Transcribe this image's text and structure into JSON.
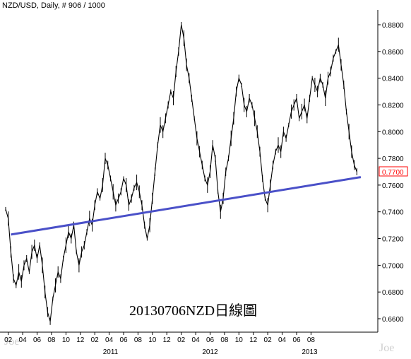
{
  "header": {
    "symbol": "NZD/USD",
    "period": ", Daily, # 906 / 1000"
  },
  "annotation": "20130706NZD日線圖",
  "watermark": {
    "left": "Joe",
    "right": "Joe"
  },
  "colors": {
    "price": "#000000",
    "trendline": "#4a50c8",
    "current_label": "#ff0000",
    "axis": "#000000"
  },
  "chart_data": {
    "type": "line",
    "title": "",
    "series": [
      {
        "values": [
          [
            0,
            0.742
          ],
          [
            2,
            0.735
          ],
          [
            4,
            0.71
          ],
          [
            6,
            0.69
          ],
          [
            8,
            0.685
          ],
          [
            10,
            0.695
          ],
          [
            12,
            0.688
          ],
          [
            14,
            0.7
          ],
          [
            16,
            0.705
          ],
          [
            18,
            0.695
          ],
          [
            20,
            0.71
          ],
          [
            22,
            0.715
          ],
          [
            24,
            0.705
          ],
          [
            26,
            0.715
          ],
          [
            28,
            0.7
          ],
          [
            30,
            0.68
          ],
          [
            32,
            0.665
          ],
          [
            34,
            0.658
          ],
          [
            36,
            0.675
          ],
          [
            38,
            0.685
          ],
          [
            40,
            0.695
          ],
          [
            42,
            0.69
          ],
          [
            44,
            0.705
          ],
          [
            46,
            0.715
          ],
          [
            48,
            0.725
          ],
          [
            50,
            0.72
          ],
          [
            52,
            0.73
          ],
          [
            54,
            0.71
          ],
          [
            56,
            0.7
          ],
          [
            58,
            0.71
          ],
          [
            60,
            0.715
          ],
          [
            62,
            0.725
          ],
          [
            64,
            0.735
          ],
          [
            66,
            0.73
          ],
          [
            68,
            0.745
          ],
          [
            70,
            0.755
          ],
          [
            72,
            0.75
          ],
          [
            74,
            0.76
          ],
          [
            76,
            0.78
          ],
          [
            78,
            0.775
          ],
          [
            80,
            0.765
          ],
          [
            82,
            0.755
          ],
          [
            84,
            0.745
          ],
          [
            86,
            0.75
          ],
          [
            88,
            0.755
          ],
          [
            90,
            0.765
          ],
          [
            92,
            0.76
          ],
          [
            94,
            0.745
          ],
          [
            96,
            0.75
          ],
          [
            98,
            0.758
          ],
          [
            100,
            0.762
          ],
          [
            102,
            0.755
          ],
          [
            104,
            0.745
          ],
          [
            106,
            0.73
          ],
          [
            108,
            0.72
          ],
          [
            110,
            0.73
          ],
          [
            112,
            0.75
          ],
          [
            114,
            0.77
          ],
          [
            116,
            0.79
          ],
          [
            118,
            0.805
          ],
          [
            120,
            0.8
          ],
          [
            122,
            0.81
          ],
          [
            124,
            0.82
          ],
          [
            126,
            0.83
          ],
          [
            128,
            0.825
          ],
          [
            130,
            0.845
          ],
          [
            132,
            0.86
          ],
          [
            134,
            0.88
          ],
          [
            136,
            0.87
          ],
          [
            138,
            0.85
          ],
          [
            140,
            0.84
          ],
          [
            142,
            0.825
          ],
          [
            144,
            0.81
          ],
          [
            146,
            0.795
          ],
          [
            148,
            0.785
          ],
          [
            150,
            0.775
          ],
          [
            152,
            0.765
          ],
          [
            154,
            0.76
          ],
          [
            156,
            0.77
          ],
          [
            158,
            0.79
          ],
          [
            160,
            0.78
          ],
          [
            162,
            0.755
          ],
          [
            164,
            0.74
          ],
          [
            166,
            0.75
          ],
          [
            168,
            0.77
          ],
          [
            170,
            0.78
          ],
          [
            172,
            0.795
          ],
          [
            174,
            0.81
          ],
          [
            176,
            0.83
          ],
          [
            178,
            0.84
          ],
          [
            180,
            0.835
          ],
          [
            182,
            0.82
          ],
          [
            184,
            0.815
          ],
          [
            186,
            0.825
          ],
          [
            188,
            0.82
          ],
          [
            190,
            0.81
          ],
          [
            192,
            0.8
          ],
          [
            194,
            0.785
          ],
          [
            196,
            0.765
          ],
          [
            198,
            0.75
          ],
          [
            200,
            0.745
          ],
          [
            202,
            0.76
          ],
          [
            204,
            0.775
          ],
          [
            206,
            0.785
          ],
          [
            208,
            0.79
          ],
          [
            210,
            0.785
          ],
          [
            212,
            0.8
          ],
          [
            214,
            0.795
          ],
          [
            216,
            0.805
          ],
          [
            218,
            0.815
          ],
          [
            220,
            0.82
          ],
          [
            222,
            0.825
          ],
          [
            224,
            0.81
          ],
          [
            226,
            0.815
          ],
          [
            228,
            0.82
          ],
          [
            230,
            0.81
          ],
          [
            232,
            0.825
          ],
          [
            234,
            0.84
          ],
          [
            236,
            0.835
          ],
          [
            238,
            0.83
          ],
          [
            240,
            0.84
          ],
          [
            242,
            0.835
          ],
          [
            244,
            0.825
          ],
          [
            246,
            0.84
          ],
          [
            248,
            0.845
          ],
          [
            250,
            0.855
          ],
          [
            252,
            0.86
          ],
          [
            254,
            0.865
          ],
          [
            256,
            0.85
          ],
          [
            258,
            0.835
          ],
          [
            260,
            0.815
          ],
          [
            262,
            0.8
          ],
          [
            264,
            0.785
          ],
          [
            266,
            0.775
          ],
          [
            268,
            0.77
          ]
        ]
      }
    ],
    "trendline": [
      [
        4,
        0.723
      ],
      [
        271,
        0.766
      ]
    ],
    "last_value": "0.7700",
    "xaxis": {
      "range": [
        0,
        284
      ],
      "ticks": [
        {
          "x": 2,
          "label": "02"
        },
        {
          "x": 13,
          "label": "04"
        },
        {
          "x": 24,
          "label": "06"
        },
        {
          "x": 35,
          "label": "08"
        },
        {
          "x": 46,
          "label": "10"
        },
        {
          "x": 57,
          "label": "12"
        },
        {
          "x": 68,
          "label": "02"
        },
        {
          "x": 79,
          "label": "04"
        },
        {
          "x": 90,
          "label": "06"
        },
        {
          "x": 101,
          "label": "08"
        },
        {
          "x": 112,
          "label": "10"
        },
        {
          "x": 123,
          "label": "12"
        },
        {
          "x": 134,
          "label": "02"
        },
        {
          "x": 145,
          "label": "04"
        },
        {
          "x": 156,
          "label": "06"
        },
        {
          "x": 167,
          "label": "08"
        },
        {
          "x": 178,
          "label": "10"
        },
        {
          "x": 189,
          "label": "12"
        },
        {
          "x": 200,
          "label": "02"
        },
        {
          "x": 211,
          "label": "04"
        },
        {
          "x": 222,
          "label": "06"
        },
        {
          "x": 233,
          "label": "08"
        }
      ],
      "years": [
        {
          "x": 80,
          "label": "2011"
        },
        {
          "x": 156,
          "label": "2012"
        },
        {
          "x": 232,
          "label": "2013"
        }
      ]
    },
    "yaxis": {
      "range": [
        0.652,
        0.888
      ],
      "ticks": [
        {
          "v": 0.88,
          "label": "0.8800"
        },
        {
          "v": 0.86,
          "label": "0.8600"
        },
        {
          "v": 0.84,
          "label": "0.8400"
        },
        {
          "v": 0.82,
          "label": "0.8200"
        },
        {
          "v": 0.8,
          "label": "0.8000"
        },
        {
          "v": 0.78,
          "label": "0.7800"
        },
        {
          "v": 0.76,
          "label": "0.7600"
        },
        {
          "v": 0.74,
          "label": "0.7400"
        },
        {
          "v": 0.72,
          "label": "0.7200"
        },
        {
          "v": 0.7,
          "label": "0.7000"
        },
        {
          "v": 0.68,
          "label": "0.6800"
        },
        {
          "v": 0.66,
          "label": "0.6600"
        }
      ]
    },
    "grid": false,
    "legend": "none"
  }
}
